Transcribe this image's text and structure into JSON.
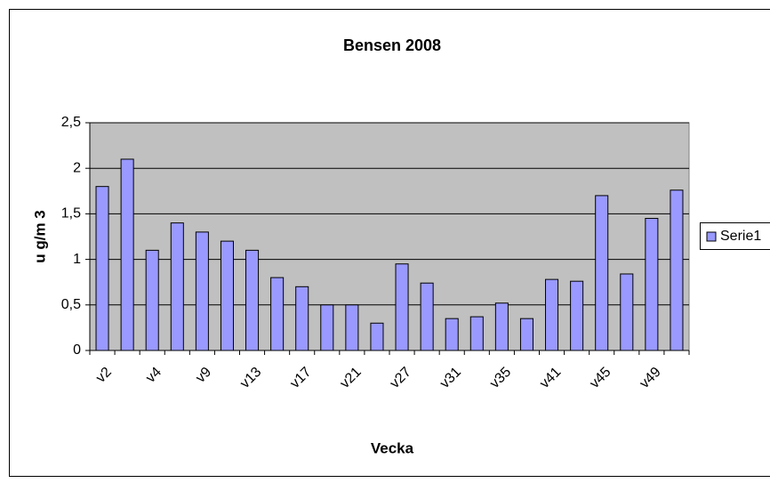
{
  "chart_data": {
    "type": "bar",
    "title": "Bensen 2008",
    "x_label": "Vecka",
    "y_label": "u g/m 3",
    "categories": [
      "v2",
      null,
      "v4",
      null,
      "v9",
      null,
      "v13",
      null,
      "v17",
      null,
      "v21",
      null,
      "v27",
      null,
      "v31",
      null,
      "v35",
      null,
      "v41",
      null,
      "v45",
      null,
      "v49",
      null
    ],
    "series": [
      {
        "name": "Serie1",
        "color": "#9999ff",
        "values": [
          1.8,
          2.1,
          1.1,
          1.4,
          1.3,
          1.2,
          1.1,
          0.8,
          0.7,
          0.5,
          0.5,
          0.3,
          0.95,
          0.74,
          0.35,
          0.37,
          0.52,
          0.35,
          0.78,
          0.76,
          1.7,
          0.84,
          1.45,
          1.76
        ]
      }
    ],
    "ylim": [
      0,
      2.5
    ],
    "yticks": [
      0,
      {
        "value": 0.5,
        "label": "0,5"
      },
      1,
      {
        "value": 1.5,
        "label": "1,5"
      },
      2,
      {
        "value": 2.5,
        "label": "2,5"
      }
    ],
    "grid": true,
    "legend": "right",
    "plot_background": "#c0c0c0"
  }
}
